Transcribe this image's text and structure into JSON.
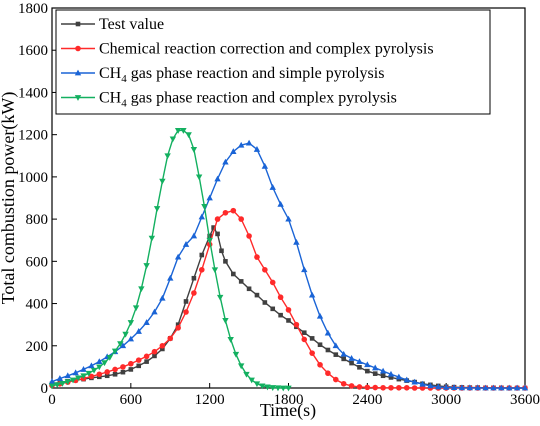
{
  "chart_data": {
    "type": "line",
    "xlabel": "Time(s)",
    "ylabel": "Total combustion power(kW)",
    "xlim": [
      0,
      3600
    ],
    "ylim": [
      0,
      1800
    ],
    "xticks": [
      "0",
      "600",
      "1200",
      "1800",
      "2400",
      "3000",
      "3600"
    ],
    "yticks": [
      "0",
      "200",
      "400",
      "600",
      "800",
      "1000",
      "1200",
      "1400",
      "1600",
      "1800"
    ],
    "grid": false,
    "legend_position": "top-right",
    "series": [
      {
        "name": "Test value",
        "color": "#404040",
        "marker": "square",
        "x": [
          0,
          60,
          120,
          180,
          240,
          300,
          360,
          420,
          480,
          540,
          600,
          660,
          720,
          780,
          840,
          900,
          960,
          1020,
          1080,
          1140,
          1200,
          1230,
          1260,
          1290,
          1320,
          1380,
          1440,
          1500,
          1560,
          1620,
          1680,
          1740,
          1800,
          1860,
          1920,
          1980,
          2040,
          2100,
          2160,
          2220,
          2280,
          2340,
          2400,
          2460,
          2520,
          2580,
          2640,
          2700,
          2760,
          2820,
          2880,
          2940,
          3000,
          3060,
          3120,
          3180,
          3240,
          3300,
          3360,
          3420,
          3480,
          3540,
          3600
        ],
        "values": [
          20,
          26,
          32,
          37,
          42,
          48,
          53,
          58,
          65,
          75,
          88,
          105,
          125,
          152,
          185,
          235,
          300,
          410,
          520,
          630,
          720,
          760,
          730,
          650,
          600,
          540,
          505,
          470,
          440,
          405,
          375,
          345,
          320,
          290,
          262,
          235,
          205,
          180,
          158,
          138,
          118,
          98,
          80,
          68,
          58,
          50,
          42,
          35,
          28,
          20,
          15,
          10,
          6,
          4,
          3,
          2,
          2,
          1,
          1,
          1,
          0,
          0,
          0
        ]
      },
      {
        "name": "Chemical reaction correction and complex pyrolysis",
        "color": "#ff2a2a",
        "marker": "circle",
        "x": [
          0,
          60,
          120,
          180,
          240,
          300,
          360,
          420,
          480,
          540,
          600,
          660,
          720,
          780,
          840,
          900,
          960,
          1020,
          1080,
          1140,
          1200,
          1260,
          1320,
          1380,
          1440,
          1500,
          1560,
          1620,
          1680,
          1740,
          1800,
          1860,
          1920,
          1980,
          2040,
          2100,
          2160,
          2220,
          2280,
          2340,
          2400,
          2460,
          2520,
          2580,
          2640,
          2700,
          2760,
          2820,
          2880,
          2940,
          3000,
          3060,
          3120,
          3180,
          3240,
          3300,
          3360,
          3420,
          3480,
          3540,
          3600
        ],
        "values": [
          12,
          20,
          28,
          36,
          45,
          55,
          65,
          76,
          88,
          100,
          115,
          132,
          150,
          172,
          200,
          235,
          285,
          360,
          450,
          560,
          680,
          800,
          830,
          840,
          800,
          720,
          620,
          560,
          500,
          430,
          370,
          300,
          230,
          165,
          110,
          70,
          40,
          20,
          10,
          5,
          3,
          2,
          1,
          1,
          1,
          1,
          0,
          0,
          0,
          0,
          0,
          0,
          0,
          0,
          0,
          0,
          0,
          0,
          0,
          0,
          0
        ]
      },
      {
        "name": "CH4 gas phase reaction and simple pyrolysis",
        "label_main": "CH",
        "label_sub": "4",
        "label_rest": " gas phase reaction and simple pyrolysis",
        "color": "#1a64d6",
        "marker": "triangle-up",
        "x": [
          0,
          60,
          120,
          180,
          240,
          300,
          360,
          420,
          480,
          540,
          600,
          660,
          720,
          780,
          840,
          900,
          960,
          1020,
          1080,
          1140,
          1200,
          1260,
          1320,
          1380,
          1440,
          1500,
          1560,
          1620,
          1680,
          1740,
          1800,
          1860,
          1920,
          1980,
          2040,
          2100,
          2160,
          2220,
          2280,
          2340,
          2400,
          2460,
          2520,
          2580,
          2640,
          2700,
          2760,
          2820,
          2880,
          2940,
          3000,
          3060,
          3120,
          3180,
          3240,
          3300,
          3360,
          3420,
          3480,
          3540,
          3600
        ],
        "values": [
          30,
          45,
          58,
          72,
          88,
          105,
          125,
          148,
          172,
          200,
          232,
          268,
          310,
          360,
          425,
          520,
          620,
          680,
          720,
          810,
          900,
          990,
          1070,
          1120,
          1150,
          1160,
          1130,
          1050,
          950,
          870,
          800,
          690,
          560,
          440,
          340,
          260,
          200,
          160,
          140,
          125,
          110,
          95,
          80,
          65,
          52,
          38,
          28,
          18,
          10,
          5,
          3,
          2,
          1,
          1,
          1,
          0,
          0,
          0,
          0,
          0,
          0
        ]
      },
      {
        "name": "CH4 gas phase reaction and complex pyrolysis",
        "label_main": "CH",
        "label_sub": "4",
        "label_rest": " gas phase reaction and complex pyrolysis",
        "color": "#13b060",
        "marker": "triangle-down",
        "x": [
          0,
          40,
          80,
          120,
          160,
          200,
          240,
          280,
          320,
          360,
          400,
          440,
          480,
          520,
          560,
          600,
          640,
          680,
          720,
          760,
          800,
          840,
          880,
          920,
          960,
          1000,
          1040,
          1080,
          1120,
          1160,
          1200,
          1240,
          1280,
          1320,
          1360,
          1400,
          1440,
          1480,
          1520,
          1560,
          1600,
          1640,
          1680,
          1720,
          1760,
          1800
        ],
        "values": [
          10,
          16,
          22,
          30,
          38,
          48,
          58,
          70,
          84,
          100,
          120,
          145,
          175,
          210,
          255,
          310,
          380,
          470,
          580,
          710,
          850,
          980,
          1100,
          1180,
          1220,
          1220,
          1200,
          1130,
          1000,
          860,
          700,
          560,
          430,
          320,
          230,
          160,
          105,
          65,
          38,
          20,
          10,
          5,
          2,
          1,
          0,
          0
        ]
      }
    ]
  }
}
